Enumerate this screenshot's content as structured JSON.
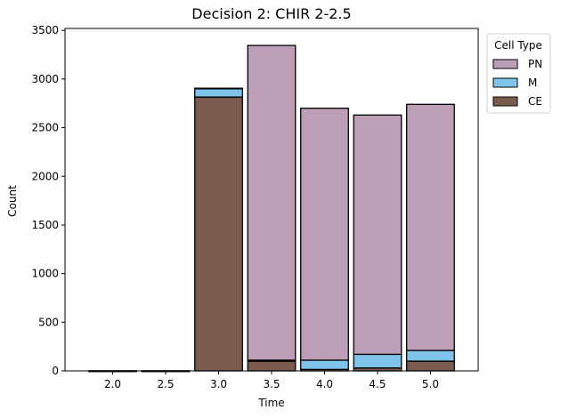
{
  "chart_data": {
    "type": "bar",
    "stacked": true,
    "title": "Decision 2: CHIR 2-2.5",
    "xlabel": "Time",
    "ylabel": "Count",
    "x": [
      2.0,
      2.5,
      3.0,
      3.5,
      4.0,
      4.5,
      5.0
    ],
    "x_tick_labels": [
      "2.0",
      "2.5",
      "3.0",
      "3.5",
      "4.0",
      "4.5",
      "5.0"
    ],
    "y_ticks": [
      0,
      500,
      1000,
      1500,
      2000,
      2500,
      3000,
      3500
    ],
    "y_tick_labels": [
      "0",
      "500",
      "1000",
      "1500",
      "2000",
      "2500",
      "3000",
      "3500"
    ],
    "xlim": [
      1.55,
      5.45
    ],
    "ylim": [
      0,
      3520
    ],
    "series": [
      {
        "name": "CE",
        "color": "#7a5c4f",
        "values": [
          0,
          0,
          2815,
          100,
          15,
          30,
          100
        ]
      },
      {
        "name": "M",
        "color": "#7ec4ea",
        "values": [
          0,
          0,
          90,
          10,
          95,
          140,
          110
        ]
      },
      {
        "name": "PN",
        "color": "#bc9fb6",
        "values": [
          0,
          0,
          0,
          3235,
          2590,
          2460,
          2530
        ]
      }
    ],
    "legend": {
      "title": "Cell Type",
      "placement": "outside-upper-right",
      "order": [
        "PN",
        "M",
        "CE"
      ]
    },
    "grid": false
  }
}
